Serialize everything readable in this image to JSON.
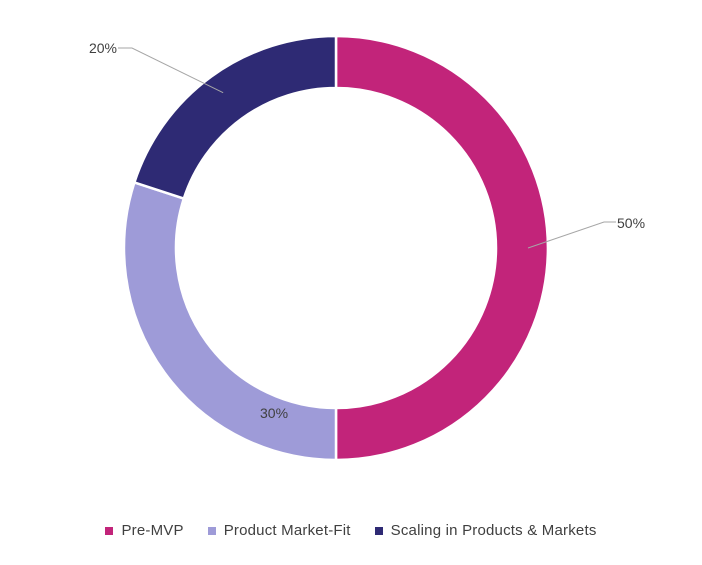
{
  "chart_data": {
    "type": "pie",
    "variant": "donut",
    "title": "",
    "categories": [
      "Pre-MVP",
      "Product Market-Fit",
      "Scaling in Products & Markets"
    ],
    "values": [
      50,
      30,
      20
    ],
    "unit": "%",
    "data_labels": [
      "50%",
      "30%",
      "20%"
    ],
    "colors": [
      "#C2247A",
      "#9E9BD8",
      "#2E2A74"
    ],
    "legend_position": "bottom",
    "start_angle": "12 o'clock",
    "direction": "clockwise"
  }
}
